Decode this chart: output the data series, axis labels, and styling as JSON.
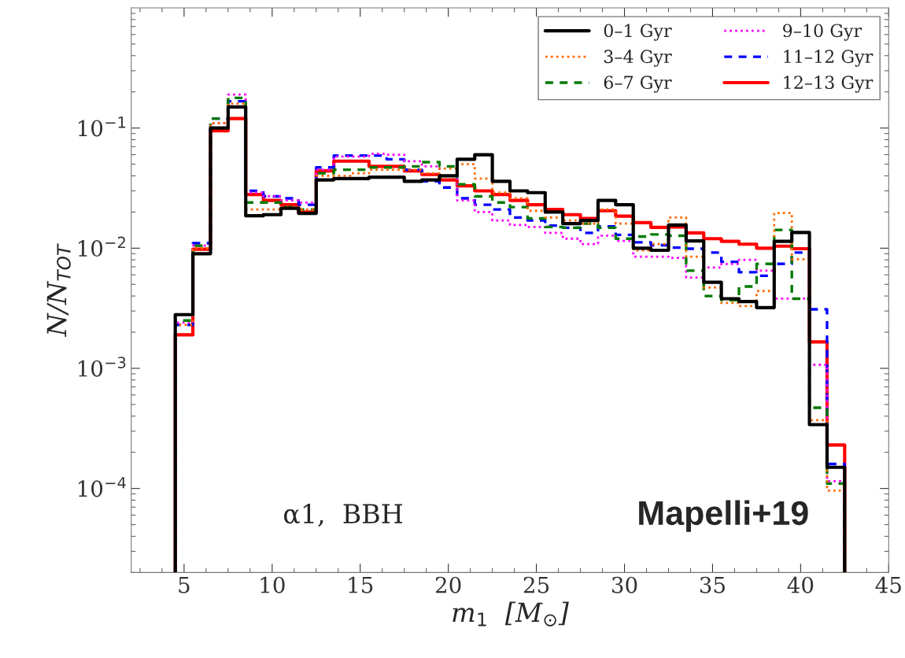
{
  "chart_data": {
    "type": "histogram",
    "xlabel": "m$_{1}$  [M$_{⊙}$]",
    "ylabel": "N/N$_{TOT}$",
    "bins": [
      4.5,
      5.5,
      6.5,
      7.5,
      8.5,
      9.5,
      10.5,
      11.5,
      12.5,
      13.5,
      14.5,
      15.5,
      16.5,
      17.5,
      18.5,
      19.5,
      20.5,
      21.5,
      22.5,
      23.5,
      24.5,
      25.5,
      26.5,
      27.5,
      28.5,
      29.5,
      30.5,
      31.5,
      32.5,
      33.5,
      34.5,
      35.5,
      36.5,
      37.5,
      38.5,
      39.5,
      40.5,
      41.5,
      42.5
    ],
    "series": [
      {
        "name": "0–1 Gyr",
        "color": "#000000",
        "line_style": "solid",
        "values": [
          0.0028,
          0.009,
          0.1,
          0.15,
          0.0186,
          0.019,
          0.0215,
          0.0195,
          0.037,
          0.038,
          0.038,
          0.039,
          0.039,
          0.036,
          0.037,
          0.04,
          0.055,
          0.06,
          0.036,
          0.03,
          0.029,
          0.02,
          0.016,
          0.017,
          0.025,
          0.023,
          0.01,
          0.0096,
          0.0156,
          0.0115,
          0.0052,
          0.0038,
          0.0036,
          0.0032,
          0.0114,
          0.0135,
          0.00034,
          0.00015
        ]
      },
      {
        "name": "3–4 Gyr",
        "color": "#ff6a00",
        "line_style": "dotted",
        "values": [
          0.0023,
          0.01,
          0.11,
          0.16,
          0.021,
          0.021,
          0.022,
          0.021,
          0.04,
          0.04,
          0.042,
          0.045,
          0.045,
          0.045,
          0.042,
          0.046,
          0.05,
          0.038,
          0.029,
          0.026,
          0.0205,
          0.018,
          0.017,
          0.016,
          0.021,
          0.016,
          0.0096,
          0.0108,
          0.018,
          0.0085,
          0.0047,
          0.0035,
          0.0033,
          0.0044,
          0.0196,
          0.0081,
          0.00037,
          9.6e-05
        ]
      },
      {
        "name": "6–7 Gyr",
        "color": "#007a00",
        "line_style": "dashed",
        "values": [
          0.0025,
          0.0105,
          0.12,
          0.178,
          0.024,
          0.024,
          0.022,
          0.021,
          0.042,
          0.045,
          0.045,
          0.047,
          0.047,
          0.048,
          0.052,
          0.048,
          0.034,
          0.027,
          0.024,
          0.022,
          0.0177,
          0.015,
          0.0148,
          0.016,
          0.0148,
          0.012,
          0.0125,
          0.013,
          0.0127,
          0.0065,
          0.004,
          0.0037,
          0.0048,
          0.0074,
          0.0142,
          0.0038,
          0.00047,
          0.00011
        ]
      },
      {
        "name": "9–10 Gyr",
        "color": "#ff00ff",
        "line_style": "dotted",
        "values": [
          0.0024,
          0.0105,
          0.11,
          0.19,
          0.029,
          0.027,
          0.025,
          0.024,
          0.045,
          0.058,
          0.058,
          0.061,
          0.06,
          0.053,
          0.048,
          0.04,
          0.025,
          0.02,
          0.017,
          0.0156,
          0.015,
          0.0134,
          0.012,
          0.0108,
          0.0127,
          0.0115,
          0.0085,
          0.0085,
          0.0083,
          0.0057,
          0.0069,
          0.0074,
          0.008,
          0.0065,
          0.0038,
          0.0038,
          0.00107,
          0.000115
        ]
      },
      {
        "name": "11–12 Gyr",
        "color": "#0000ff",
        "line_style": "dashed",
        "values": [
          0.0023,
          0.011,
          0.12,
          0.167,
          0.03,
          0.027,
          0.026,
          0.023,
          0.047,
          0.059,
          0.059,
          0.059,
          0.055,
          0.045,
          0.036,
          0.032,
          0.026,
          0.023,
          0.021,
          0.018,
          0.017,
          0.0154,
          0.0148,
          0.0134,
          0.0152,
          0.0129,
          0.0112,
          0.0106,
          0.0101,
          0.0099,
          0.0092,
          0.0077,
          0.0063,
          0.0059,
          0.0074,
          0.0092,
          0.0031,
          0.00016
        ]
      },
      {
        "name": "12–13 Gyr",
        "color": "#ff0000",
        "line_style": "solid",
        "values": [
          0.0019,
          0.0098,
          0.095,
          0.12,
          0.028,
          0.025,
          0.023,
          0.02,
          0.044,
          0.053,
          0.053,
          0.048,
          0.048,
          0.044,
          0.041,
          0.037,
          0.033,
          0.03,
          0.028,
          0.025,
          0.023,
          0.021,
          0.019,
          0.0177,
          0.0205,
          0.0185,
          0.0163,
          0.0149,
          0.015,
          0.0134,
          0.012,
          0.0114,
          0.0108,
          0.01,
          0.0104,
          0.0099,
          0.00166,
          0.00023
        ]
      }
    ],
    "xlim": [
      2,
      45
    ],
    "xticks": [
      5,
      10,
      15,
      20,
      25,
      30,
      35,
      40,
      45
    ],
    "ylim": [
      2e-05,
      1
    ],
    "yticks": [
      {
        "value": 0.0001,
        "label": "10$^{−4}$"
      },
      {
        "value": 0.001,
        "label": "10$^{−3}$"
      },
      {
        "value": 0.01,
        "label": "10$^{−2}$"
      },
      {
        "value": 0.1,
        "label": "10$^{−1}$"
      }
    ],
    "log": "y",
    "grid": false,
    "legend": "top right",
    "annotations": [
      "α1,  BBH",
      "Mapelli+19"
    ]
  }
}
